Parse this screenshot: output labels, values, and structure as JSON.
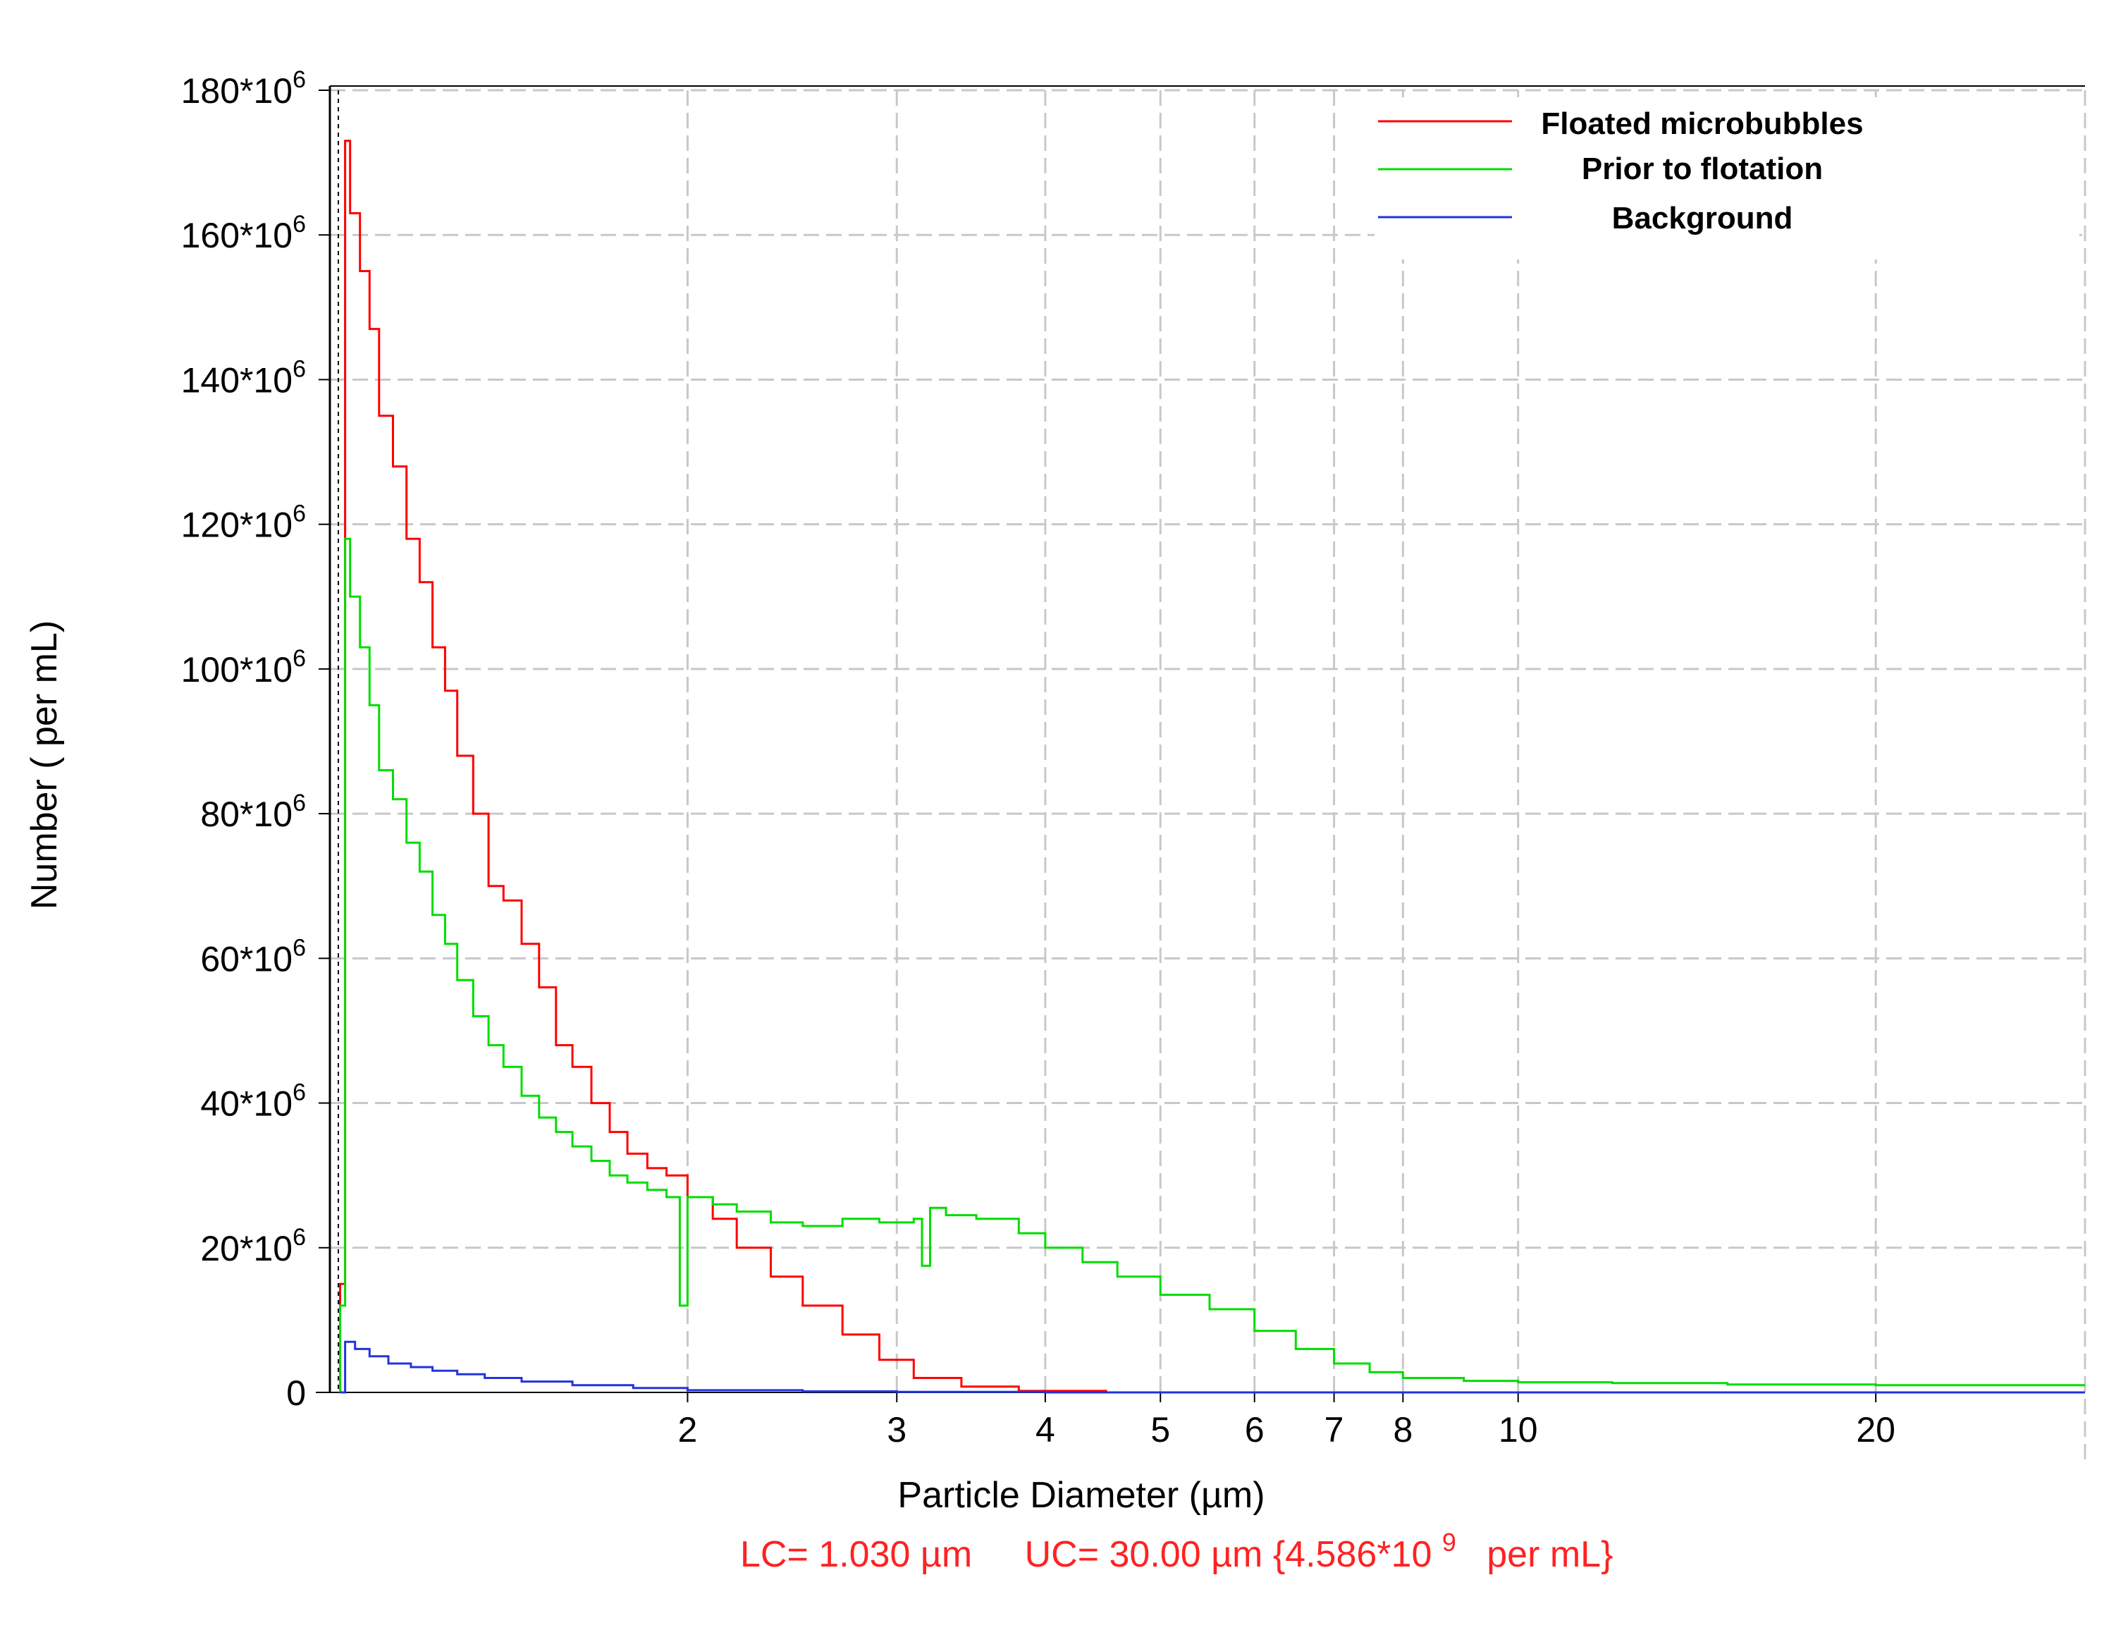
{
  "chart_data": {
    "type": "line",
    "subtype": "step-histogram",
    "xscale": "log",
    "xlabel": "Particle Diameter (µm)",
    "ylabel": "Number ( per mL)",
    "xlim": [
      1.0,
      30.0
    ],
    "ylim": [
      0,
      180000000
    ],
    "grid": true,
    "legend_position": "top-right",
    "x_ticks": [
      {
        "value": 2,
        "label": "2"
      },
      {
        "value": 3,
        "label": "3"
      },
      {
        "value": 4,
        "label": "4"
      },
      {
        "value": 5,
        "label": "5"
      },
      {
        "value": 6,
        "label": "6"
      },
      {
        "value": 7,
        "label": "7"
      },
      {
        "value": 8,
        "label": "8"
      },
      {
        "value": 10,
        "label": "10"
      },
      {
        "value": 20,
        "label": "20"
      }
    ],
    "y_ticks": [
      {
        "value": 0,
        "base": "0",
        "exp": ""
      },
      {
        "value": 20000000,
        "base": "20*10",
        "exp": "6"
      },
      {
        "value": 40000000,
        "base": "40*10",
        "exp": "6"
      },
      {
        "value": 60000000,
        "base": "60*10",
        "exp": "6"
      },
      {
        "value": 80000000,
        "base": "80*10",
        "exp": "6"
      },
      {
        "value": 100000000,
        "base": "100*10",
        "exp": "6"
      },
      {
        "value": 120000000,
        "base": "120*10",
        "exp": "6"
      },
      {
        "value": 140000000,
        "base": "140*10",
        "exp": "6"
      },
      {
        "value": 160000000,
        "base": "160*10",
        "exp": "6"
      },
      {
        "value": 180000000,
        "base": "180*10",
        "exp": "6"
      }
    ],
    "series": [
      {
        "name": "Floated microbubbles",
        "color": "#ff0000",
        "x": [
          1.02,
          1.03,
          1.04,
          1.06,
          1.08,
          1.1,
          1.13,
          1.16,
          1.19,
          1.22,
          1.25,
          1.28,
          1.32,
          1.36,
          1.4,
          1.45,
          1.5,
          1.55,
          1.6,
          1.66,
          1.72,
          1.78,
          1.85,
          1.92,
          2.0,
          2.1,
          2.2,
          2.35,
          2.5,
          2.7,
          2.9,
          3.1,
          3.4,
          3.8,
          4.5,
          6.0,
          8.0,
          10.0,
          15.0,
          30.0
        ],
        "values": [
          15000000,
          173000000,
          163000000,
          155000000,
          147000000,
          135000000,
          128000000,
          118000000,
          112000000,
          103000000,
          97000000,
          88000000,
          80000000,
          70000000,
          68000000,
          62000000,
          56000000,
          48000000,
          45000000,
          40000000,
          36000000,
          33000000,
          31000000,
          30000000,
          27000000,
          24000000,
          20000000,
          16000000,
          12000000,
          8000000,
          4500000,
          2000000,
          800000,
          200000,
          0,
          0,
          0,
          0,
          0,
          0
        ]
      },
      {
        "name": "Prior to flotation",
        "color": "#00dd00",
        "x": [
          1.02,
          1.03,
          1.04,
          1.06,
          1.08,
          1.1,
          1.13,
          1.16,
          1.19,
          1.22,
          1.25,
          1.28,
          1.32,
          1.36,
          1.4,
          1.45,
          1.5,
          1.55,
          1.6,
          1.66,
          1.72,
          1.78,
          1.85,
          1.92,
          1.97,
          2.0,
          2.1,
          2.2,
          2.35,
          2.5,
          2.7,
          2.9,
          3.1,
          3.15,
          3.2,
          3.3,
          3.5,
          3.8,
          4.0,
          4.3,
          4.6,
          5.0,
          5.5,
          6.0,
          6.5,
          7.0,
          7.5,
          8.0,
          9.0,
          10.0,
          12.0,
          15.0,
          20.0,
          25.0,
          30.0
        ],
        "values": [
          12000000,
          118000000,
          110000000,
          103000000,
          95000000,
          86000000,
          82000000,
          76000000,
          72000000,
          66000000,
          62000000,
          57000000,
          52000000,
          48000000,
          45000000,
          41000000,
          38000000,
          36000000,
          34000000,
          32000000,
          30000000,
          29000000,
          28000000,
          27000000,
          12000000,
          27000000,
          26000000,
          25000000,
          23500000,
          23000000,
          24000000,
          23500000,
          24000000,
          17500000,
          25500000,
          24500000,
          24000000,
          22000000,
          20000000,
          18000000,
          16000000,
          13500000,
          11500000,
          8500000,
          6000000,
          4000000,
          2800000,
          2000000,
          1600000,
          1400000,
          1300000,
          1100000,
          1000000,
          1000000,
          1000000
        ]
      },
      {
        "name": "Background",
        "color": "#2233dd",
        "x": [
          1.02,
          1.03,
          1.05,
          1.08,
          1.12,
          1.17,
          1.22,
          1.28,
          1.35,
          1.45,
          1.6,
          1.8,
          2.0,
          2.5,
          3.0,
          4.0,
          30.0
        ],
        "values": [
          0,
          7000000,
          6000000,
          5000000,
          4000000,
          3500000,
          3000000,
          2500000,
          2000000,
          1500000,
          1000000,
          600000,
          300000,
          150000,
          80000,
          0,
          0
        ]
      }
    ],
    "footer": {
      "lc": "LC= 1.030 µm",
      "uc": "UC= 30.00 µm {4.586*10",
      "uc_exp": "9",
      "uc_unit": "  per mL}"
    }
  },
  "colors": {
    "footer": "#ff2222",
    "grid": "#c8c8c8",
    "axis": "#000000"
  }
}
